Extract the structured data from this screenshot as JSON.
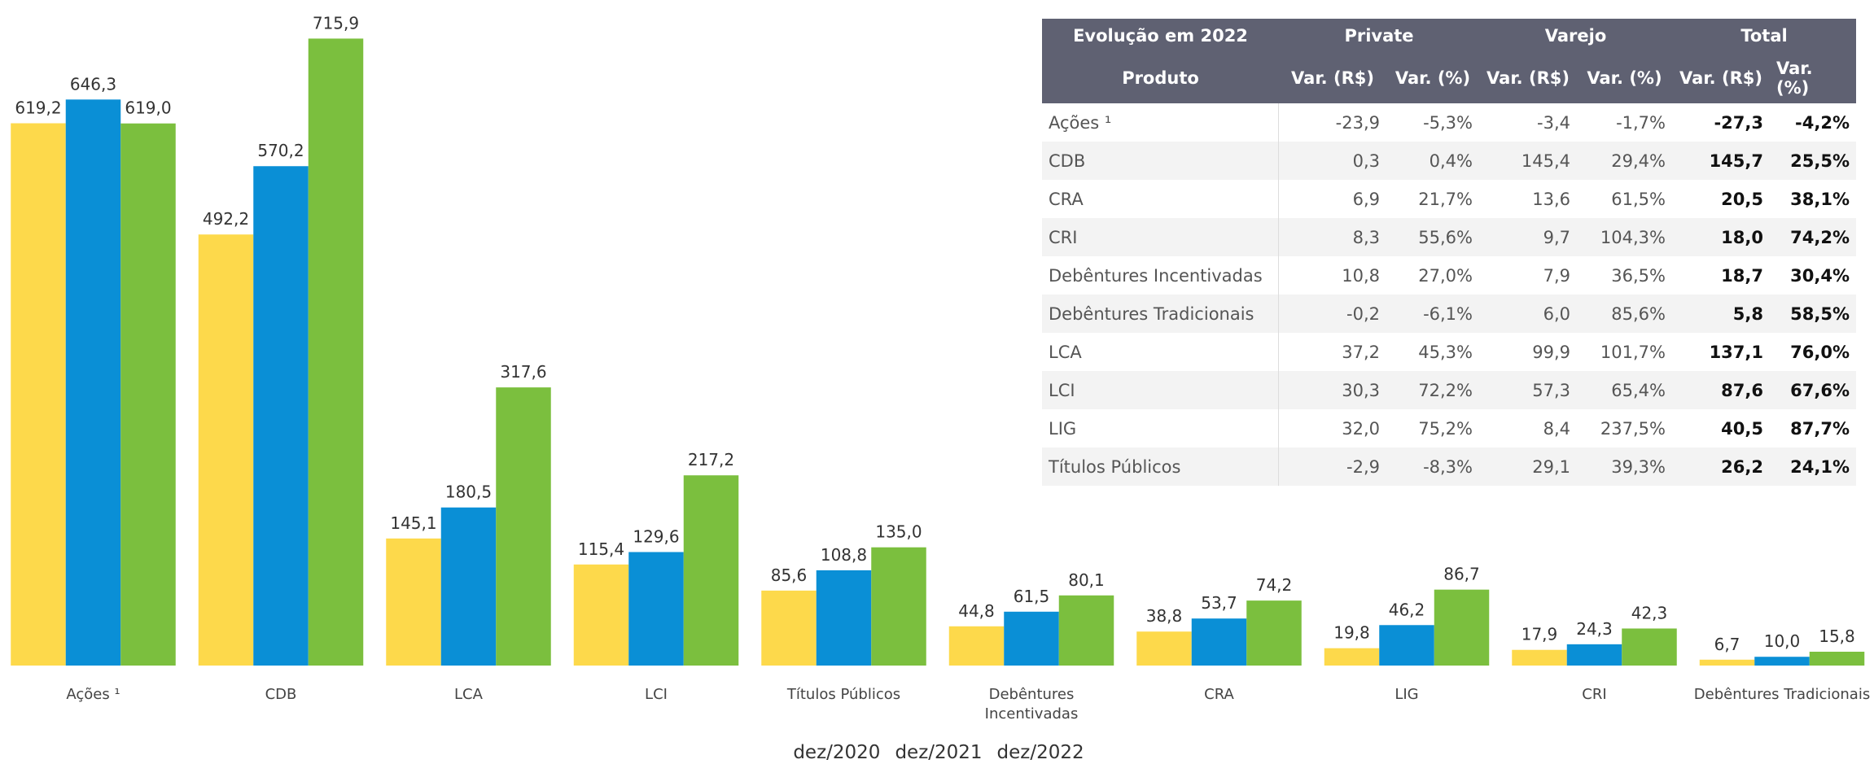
{
  "chart_data": {
    "type": "bar",
    "categories": [
      "Ações ¹",
      "CDB",
      "LCA",
      "LCI",
      "Títulos Públicos",
      "Debêntures Incentivadas",
      "CRA",
      "LIG",
      "CRI",
      "Debêntures Tradicionais"
    ],
    "series": [
      {
        "name": "dez/2020",
        "color": "#fdd94b",
        "values": [
          619.2,
          492.2,
          145.1,
          115.4,
          85.6,
          44.8,
          38.8,
          19.8,
          17.9,
          6.7
        ],
        "value_labels": [
          "619,2",
          "492,2",
          "145,1",
          "115,4",
          "85,6",
          "44,8",
          "38,8",
          "19,8",
          "17,9",
          "6,7"
        ]
      },
      {
        "name": "dez/2021",
        "color": "#0a8fd6",
        "values": [
          646.3,
          570.2,
          180.5,
          129.6,
          108.8,
          61.5,
          53.7,
          46.2,
          24.3,
          10.0
        ],
        "value_labels": [
          "646,3",
          "570,2",
          "180,5",
          "129,6",
          "108,8",
          "61,5",
          "53,7",
          "46,2",
          "24,3",
          "10,0"
        ]
      },
      {
        "name": "dez/2022",
        "color": "#7bbf3e",
        "values": [
          619.0,
          715.9,
          317.6,
          217.2,
          135.0,
          80.1,
          74.2,
          86.7,
          42.3,
          15.8
        ],
        "value_labels": [
          "619,0",
          "715,9",
          "317,6",
          "217,2",
          "135,0",
          "80,1",
          "74,2",
          "86,7",
          "42,3",
          "15,8"
        ]
      }
    ],
    "ylim": [
      0,
      720
    ],
    "legend": "bottom"
  },
  "table": {
    "header": [
      "Evolução em 2022",
      "Private",
      "Varejo",
      "Total"
    ],
    "subheader": [
      "Produto",
      "Var. (R$)",
      "Var. (%)",
      "Var. (R$)",
      "Var. (%)",
      "Var. (R$)",
      "Var. (%)"
    ],
    "rows": [
      [
        "Ações ¹",
        "-23,9",
        "-5,3%",
        "-3,4",
        "-1,7%",
        "-27,3",
        "-4,2%"
      ],
      [
        "CDB",
        "0,3",
        "0,4%",
        "145,4",
        "29,4%",
        "145,7",
        "25,5%"
      ],
      [
        "CRA",
        "6,9",
        "21,7%",
        "13,6",
        "61,5%",
        "20,5",
        "38,1%"
      ],
      [
        "CRI",
        "8,3",
        "55,6%",
        "9,7",
        "104,3%",
        "18,0",
        "74,2%"
      ],
      [
        "Debêntures Incentivadas",
        "10,8",
        "27,0%",
        "7,9",
        "36,5%",
        "18,7",
        "30,4%"
      ],
      [
        "Debêntures Tradicionais",
        "-0,2",
        "-6,1%",
        "6,0",
        "85,6%",
        "5,8",
        "58,5%"
      ],
      [
        "LCA",
        "37,2",
        "45,3%",
        "99,9",
        "101,7%",
        "137,1",
        "76,0%"
      ],
      [
        "LCI",
        "30,3",
        "72,2%",
        "57,3",
        "65,4%",
        "87,6",
        "67,6%"
      ],
      [
        "LIG",
        "32,0",
        "75,2%",
        "8,4",
        "237,5%",
        "40,5",
        "87,7%"
      ],
      [
        "Títulos Públicos",
        "-2,9",
        "-8,3%",
        "29,1",
        "39,3%",
        "26,2",
        "24,1%"
      ]
    ]
  }
}
